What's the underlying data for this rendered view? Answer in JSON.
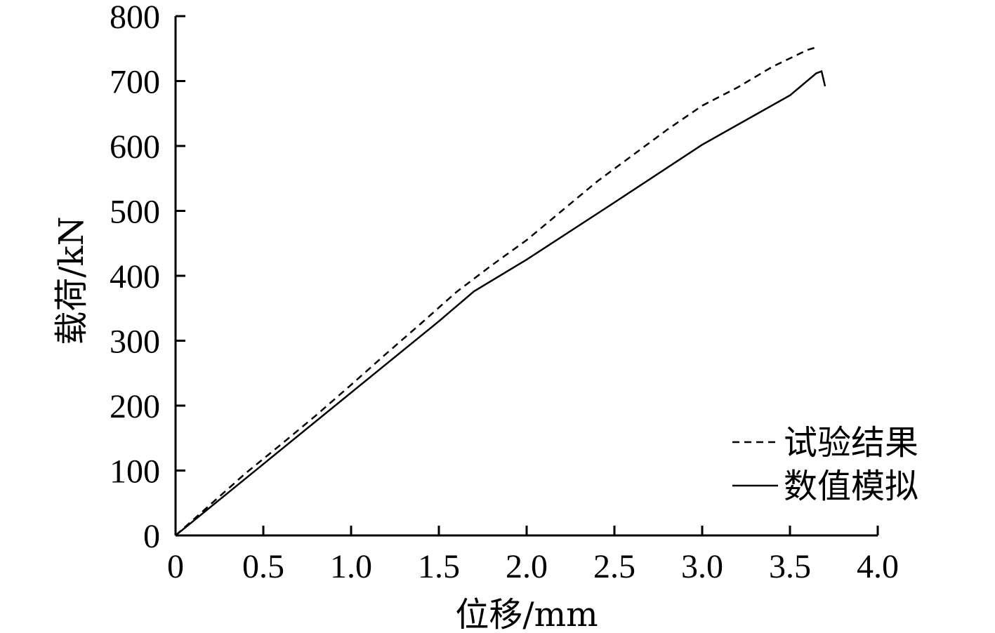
{
  "chart_data": {
    "type": "line",
    "title": "",
    "xlabel": "位移/mm",
    "ylabel": "载荷/kN",
    "xlim": [
      0,
      4.0
    ],
    "ylim": [
      0,
      800
    ],
    "x_ticks": [
      0,
      0.5,
      1.0,
      1.5,
      2.0,
      2.5,
      3.0,
      3.5,
      4.0
    ],
    "x_tick_labels": [
      "0",
      "0.5",
      "1.0",
      "1.5",
      "2.0",
      "2.5",
      "3.0",
      "3.5",
      "4.0"
    ],
    "y_ticks": [
      0,
      100,
      200,
      300,
      400,
      500,
      600,
      700,
      800
    ],
    "y_tick_labels": [
      "0",
      "100",
      "200",
      "300",
      "400",
      "500",
      "600",
      "700",
      "800"
    ],
    "grid": false,
    "legend_position": "bottom-right",
    "series": [
      {
        "name": "试验结果",
        "style": "dashed",
        "color": "#000000",
        "x": [
          0,
          0.2,
          0.4,
          0.6,
          0.8,
          1.0,
          1.2,
          1.4,
          1.6,
          1.8,
          2.0,
          2.2,
          2.4,
          2.6,
          2.8,
          3.0,
          3.2,
          3.4,
          3.6,
          3.65
        ],
        "y": [
          0,
          48,
          96,
          140,
          185,
          232,
          280,
          327,
          375,
          416,
          455,
          500,
          545,
          585,
          625,
          662,
          690,
          722,
          748,
          752
        ]
      },
      {
        "name": "数值模拟",
        "style": "solid",
        "color": "#000000",
        "x": [
          0,
          0.5,
          1.0,
          1.5,
          1.7,
          2.0,
          2.5,
          3.0,
          3.5,
          3.65,
          3.68,
          3.7
        ],
        "y": [
          0,
          110,
          220,
          330,
          376,
          425,
          513,
          602,
          678,
          712,
          715,
          692
        ]
      }
    ]
  }
}
